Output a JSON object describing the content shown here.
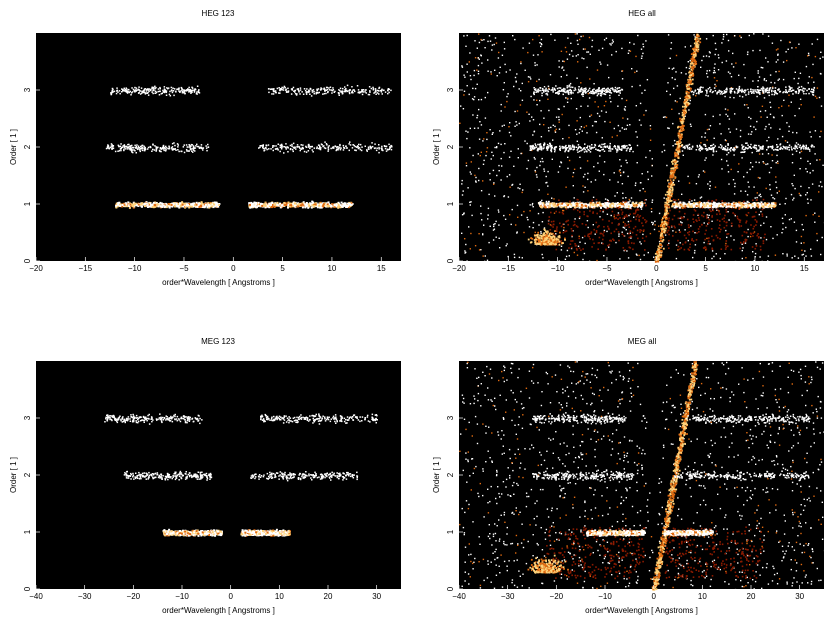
{
  "colors": {
    "background": "#000000",
    "low": "#8b1a00",
    "mid": "#e06a10",
    "high": "#ffd27a",
    "peak": "#ffffff"
  },
  "chart_data": [
    {
      "type": "heatmap",
      "title": "HEG 123",
      "xlabel": "order*Wavelength [ Angstroms ]",
      "ylabel": "Order [ 1 ]",
      "xlim": [
        -20,
        17
      ],
      "ylim": [
        0,
        4
      ],
      "xticks": [
        -20,
        -15,
        -10,
        -5,
        0,
        5,
        10,
        15
      ],
      "yticks": [
        0,
        1,
        2,
        3
      ],
      "bands": [
        {
          "order": 1,
          "x_ranges": [
            [
              -12,
              -1.5
            ],
            [
              1.5,
              12
            ]
          ],
          "intensity": "high"
        },
        {
          "order": 2,
          "x_ranges": [
            [
              -13,
              -2.5
            ],
            [
              2.5,
              16
            ]
          ],
          "intensity": "sparse"
        },
        {
          "order": 3,
          "x_ranges": [
            [
              -12.5,
              -3.5
            ],
            [
              3.5,
              16
            ]
          ],
          "intensity": "sparse"
        }
      ],
      "wedge": false,
      "low_order_blob": false
    },
    {
      "type": "heatmap",
      "title": "HEG all",
      "xlabel": "order*Wavelength [ Angstroms ]",
      "ylabel": "Order [ 1 ]",
      "xlim": [
        -20,
        17
      ],
      "ylim": [
        0,
        4
      ],
      "xticks": [
        -20,
        -15,
        -10,
        -5,
        0,
        5,
        10,
        15
      ],
      "yticks": [
        0,
        1,
        2,
        3
      ],
      "bands": [
        {
          "order": 1,
          "x_ranges": [
            [
              -12,
              -1.5
            ],
            [
              1.5,
              12
            ]
          ],
          "intensity": "high"
        },
        {
          "order": 2,
          "x_ranges": [
            [
              -13,
              -2.5
            ],
            [
              2.5,
              16
            ]
          ],
          "intensity": "sparse"
        },
        {
          "order": 3,
          "x_ranges": [
            [
              -12.5,
              -3.5
            ],
            [
              3.5,
              16
            ]
          ],
          "intensity": "sparse"
        }
      ],
      "wedge": true,
      "low_order_blob": true
    },
    {
      "type": "heatmap",
      "title": "MEG 123",
      "xlabel": "order*Wavelength [ Angstroms ]",
      "ylabel": "Order [ 1 ]",
      "xlim": [
        -40,
        35
      ],
      "ylim": [
        0,
        4
      ],
      "xticks": [
        -40,
        -30,
        -20,
        -10,
        0,
        10,
        20,
        30
      ],
      "yticks": [
        0,
        1,
        2,
        3
      ],
      "bands": [
        {
          "order": 1,
          "x_ranges": [
            [
              -14,
              -2
            ],
            [
              2,
              12
            ]
          ],
          "intensity": "high"
        },
        {
          "order": 2,
          "x_ranges": [
            [
              -22,
              -4
            ],
            [
              4,
              26
            ]
          ],
          "intensity": "sparse"
        },
        {
          "order": 3,
          "x_ranges": [
            [
              -26,
              -6
            ],
            [
              6,
              30
            ]
          ],
          "intensity": "sparse"
        }
      ],
      "wedge": false,
      "low_order_blob": false
    },
    {
      "type": "heatmap",
      "title": "MEG all",
      "xlabel": "order*Wavelength [ Angstroms ]",
      "ylabel": "Order [ 1 ]",
      "xlim": [
        -40,
        35
      ],
      "ylim": [
        0,
        4
      ],
      "xticks": [
        -40,
        -30,
        -20,
        -10,
        0,
        10,
        20,
        30
      ],
      "yticks": [
        0,
        1,
        2,
        3
      ],
      "bands": [
        {
          "order": 1,
          "x_ranges": [
            [
              -14,
              -2
            ],
            [
              2,
              12
            ]
          ],
          "intensity": "high"
        },
        {
          "order": 2,
          "x_ranges": [
            [
              -25,
              -4
            ],
            [
              4,
              32
            ]
          ],
          "intensity": "sparse"
        },
        {
          "order": 3,
          "x_ranges": [
            [
              -25,
              -6
            ],
            [
              6,
              32
            ]
          ],
          "intensity": "sparse"
        }
      ],
      "wedge": true,
      "low_order_blob": true
    }
  ]
}
